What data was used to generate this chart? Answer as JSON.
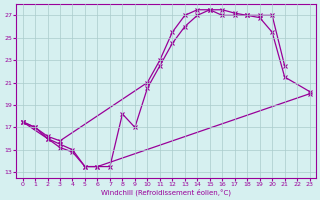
{
  "xlabel": "Windchill (Refroidissement éolien,°C)",
  "xlim": [
    -0.5,
    23.5
  ],
  "ylim": [
    12.5,
    28
  ],
  "xticks": [
    0,
    1,
    2,
    3,
    4,
    5,
    6,
    7,
    8,
    9,
    10,
    11,
    12,
    13,
    14,
    15,
    16,
    17,
    18,
    19,
    20,
    21,
    22,
    23
  ],
  "yticks": [
    13,
    15,
    17,
    19,
    21,
    23,
    25,
    27
  ],
  "bg_color": "#d6f0f0",
  "line_color": "#990099",
  "grid_color": "#aacccc",
  "s1_x": [
    0,
    1,
    2,
    3,
    10,
    11,
    12,
    13,
    14,
    15,
    16,
    17,
    18,
    19,
    20,
    21
  ],
  "s1_y": [
    17.5,
    17.0,
    16.2,
    15.8,
    21.0,
    23.0,
    25.5,
    27.0,
    27.5,
    27.5,
    27.5,
    27.2,
    27.0,
    27.0,
    27.0,
    22.5
  ],
  "s2_x": [
    0,
    1,
    2,
    3,
    4,
    5,
    6,
    7,
    8,
    9,
    10,
    11,
    12,
    13,
    14,
    15,
    16,
    17,
    18,
    19,
    20,
    21,
    23
  ],
  "s2_y": [
    17.5,
    17.0,
    16.0,
    15.5,
    15.0,
    13.5,
    13.5,
    13.5,
    18.2,
    17.0,
    20.5,
    22.5,
    24.5,
    26.0,
    27.0,
    27.5,
    27.0,
    27.0,
    27.0,
    26.8,
    25.5,
    21.5,
    20.2
  ],
  "s3_x": [
    0,
    2,
    3,
    4,
    5,
    6,
    23
  ],
  "s3_y": [
    17.5,
    16.0,
    15.2,
    14.8,
    13.5,
    13.5,
    20.0
  ]
}
